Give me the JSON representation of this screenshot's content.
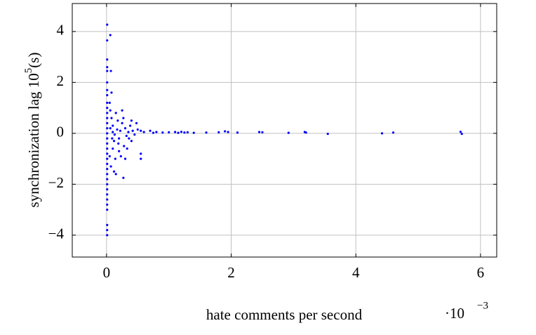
{
  "chart_data": {
    "type": "scatter",
    "xlabel": "hate comments per second",
    "xmultiplier": "·10",
    "xmultiplier_exp": "−3",
    "ylabel": "synchronization lag 10",
    "ylabel_exp": "5",
    "ylabel_suffix": "(s)",
    "color": "#0000ff",
    "grid": true,
    "xlim": [
      -0.55,
      6.26
    ],
    "ylim": [
      -4.86,
      5.1
    ],
    "xticks": [
      0,
      2,
      4,
      6
    ],
    "yticks": [
      {
        "value": -4,
        "label": "−4"
      },
      {
        "value": -2,
        "label": "−2"
      },
      0,
      2,
      4
    ],
    "x": [
      0.01,
      0.01,
      0.06,
      0.01,
      0.01,
      0.01,
      0.07,
      0.01,
      0.01,
      0.01,
      0.01,
      0.01,
      0.01,
      0.01,
      0.01,
      0.01,
      0.01,
      0.01,
      0.01,
      0.01,
      0.01,
      0.01,
      0.01,
      0.01,
      0.01,
      0.01,
      0.01,
      0.01,
      0.01,
      0.01,
      0.01,
      0.01,
      0.01,
      0.01,
      0.01,
      0.05,
      0.06,
      0.08,
      0.1,
      0.12,
      0.15,
      0.05,
      0.07,
      0.1,
      0.14,
      0.18,
      0.2,
      0.22,
      0.25,
      0.28,
      0.3,
      0.32,
      0.35,
      0.38,
      0.4,
      0.42,
      0.45,
      0.5,
      0.15,
      0.12,
      0.27,
      0.55,
      0.55,
      0.25,
      0.2,
      0.08,
      0.17,
      0.23,
      0.33,
      0.48,
      0.1,
      0.13,
      0.06,
      0.19,
      0.36,
      0.27,
      0.09,
      0.4,
      0.3,
      0.55,
      0.6,
      0.7,
      0.75,
      0.8,
      0.9,
      1.0,
      1.1,
      1.15,
      1.2,
      1.25,
      1.3,
      1.4,
      1.6,
      1.8,
      1.9,
      1.95,
      2.1,
      2.45,
      2.5,
      2.92,
      3.18,
      3.2,
      3.55,
      4.42,
      4.6,
      5.68,
      5.7
    ],
    "values": [
      4.27,
      3.65,
      3.86,
      2.9,
      2.6,
      2.45,
      2.45,
      2.0,
      1.7,
      1.5,
      1.2,
      1.0,
      0.8,
      0.6,
      0.4,
      0.2,
      0,
      -0.2,
      -0.4,
      -0.6,
      -0.8,
      -1.0,
      -1.2,
      -1.4,
      -1.6,
      -1.8,
      -2.0,
      -2.2,
      -2.4,
      -2.6,
      -2.8,
      -3.0,
      -3.6,
      -3.8,
      -4.0,
      1.2,
      0.9,
      0.6,
      0.3,
      -0.3,
      0.8,
      -0.9,
      -1.3,
      -0.6,
      -1.0,
      0.5,
      -0.2,
      0.1,
      0.4,
      -0.5,
      0.2,
      -0.1,
      0.05,
      0.3,
      -0.3,
      0.1,
      -0.05,
      0.15,
      -1.6,
      -1.5,
      -1.75,
      -0.8,
      -1.0,
      0.9,
      -0.7,
      1.6,
      0.15,
      -0.9,
      -0.6,
      0.4,
      0.05,
      -0.05,
      0.2,
      -0.4,
      -0.2,
      0.6,
      -0.2,
      0.5,
      -1.0,
      0.1,
      0.05,
      0.1,
      0.02,
      0.05,
      0.03,
      0.04,
      0.05,
      0.02,
      0.06,
      0.03,
      0.04,
      0.02,
      0.03,
      0.04,
      0.08,
      0.05,
      0.03,
      0.05,
      0.04,
      0.02,
      0.05,
      0.03,
      -0.02,
      0.0,
      0.03,
      0.06,
      -0.02
    ]
  }
}
